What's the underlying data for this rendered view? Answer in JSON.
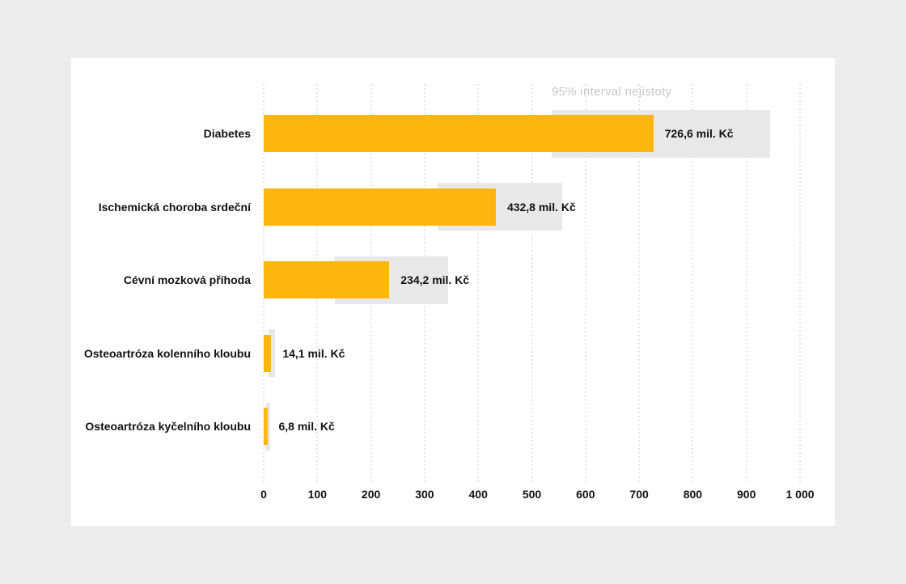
{
  "page": {
    "background_color": "#ECECEC",
    "card_background_color": "#FFFFFF"
  },
  "chart_data": {
    "type": "bar",
    "orientation": "horizontal",
    "title": "",
    "annotation": "95% interval nejistoty",
    "categories": [
      "Diabetes",
      "Ischemická choroba srdeční",
      "Cévní mozková příhoda",
      "Osteoartróza kolenního kloubu",
      "Osteoartróza kyčelního kloubu"
    ],
    "values": [
      726.6,
      432.8,
      234.2,
      14.1,
      6.8
    ],
    "value_labels": [
      "726,6 mil. Kč",
      "432,8 mil. Kč",
      "234,2 mil. Kč",
      "14,1 mil. Kč",
      "6,8 mil. Kč"
    ],
    "uncertainty_intervals": [
      [
        537,
        944
      ],
      [
        325,
        557
      ],
      [
        133,
        344
      ],
      [
        9,
        21
      ],
      [
        4,
        12
      ]
    ],
    "x_axis": {
      "min": 0,
      "max": 1000,
      "tick_step": 100,
      "tick_labels": [
        "0",
        "100",
        "200",
        "300",
        "400",
        "500",
        "600",
        "700",
        "800",
        "900",
        "1 000"
      ]
    },
    "grid": "dotted-vertical",
    "legend_position": "top-right-annotation",
    "colors": {
      "bar": "#FDB610",
      "uncertainty_band": "#E8E8E8",
      "annotation_text": "#C7C7C7",
      "label_text": "#111111",
      "gridline": "#DCDCDC"
    }
  }
}
